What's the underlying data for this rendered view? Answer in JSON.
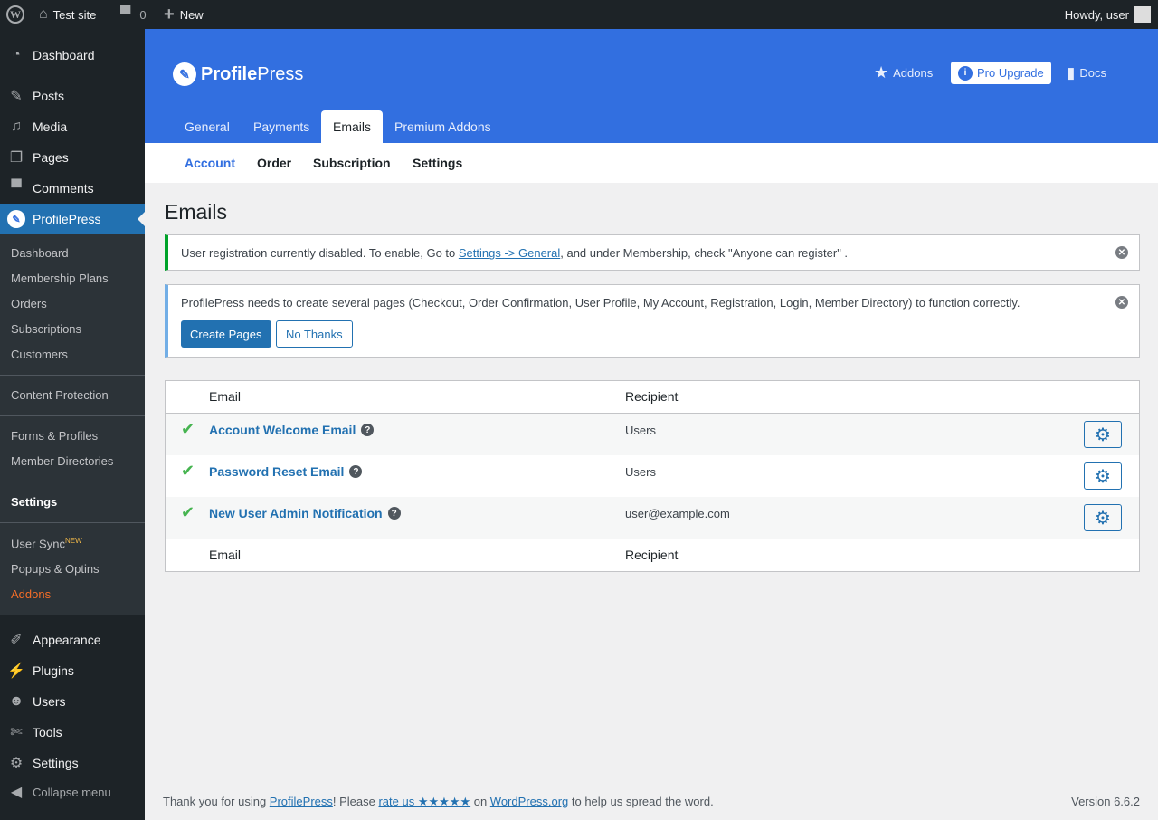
{
  "adminbar": {
    "site": "Test site",
    "comments": "0",
    "new": "New",
    "howdy": "Howdy, user"
  },
  "sidebar": {
    "top": [
      {
        "label": "Dashboard",
        "icon": "dashboard-icon"
      }
    ],
    "items": [
      {
        "label": "Posts"
      },
      {
        "label": "Media"
      },
      {
        "label": "Pages"
      },
      {
        "label": "Comments"
      },
      {
        "label": "ProfilePress"
      }
    ],
    "sub": [
      "Dashboard",
      "Membership Plans",
      "Orders",
      "Subscriptions",
      "Customers",
      "Content Protection",
      "Forms & Profiles",
      "Member Directories",
      "Settings",
      "User Sync",
      "Popups & Optins",
      "Addons"
    ],
    "new_badge": "NEW",
    "bottom": [
      "Appearance",
      "Plugins",
      "Users",
      "Tools",
      "Settings"
    ],
    "collapse": "Collapse menu"
  },
  "header": {
    "logo_bold": "Profile",
    "logo_light": "Press",
    "addons": "Addons",
    "pro": "Pro Upgrade",
    "docs": "Docs",
    "tabs": [
      "General",
      "Payments",
      "Emails",
      "Premium Addons"
    ],
    "active_tab": "Emails"
  },
  "subnav": [
    "Account",
    "Order",
    "Subscription",
    "Settings"
  ],
  "page_title": "Emails",
  "notice1": {
    "pre": "User registration currently disabled. To enable, Go to ",
    "link": "Settings -> General",
    "post": ", and under Membership, check \"Anyone can register\" ."
  },
  "notice2": {
    "text": "ProfilePress needs to create several pages (Checkout, Order Confirmation, User Profile, My Account, Registration, Login, Member Directory) to function correctly.",
    "create": "Create Pages",
    "no": "No Thanks"
  },
  "table": {
    "col_email": "Email",
    "col_recipient": "Recipient",
    "rows": [
      {
        "name": "Account Welcome Email",
        "recipient": "Users"
      },
      {
        "name": "Password Reset Email",
        "recipient": "Users"
      },
      {
        "name": "New User Admin Notification",
        "recipient": "user@example.com"
      }
    ]
  },
  "footer": {
    "a": "Thank you for using ",
    "pp": "ProfilePress",
    "b": "! Please ",
    "rate": "rate us ★★★★★",
    "c": " on ",
    "wporg": "WordPress.org",
    "d": " to help us spread the word.",
    "version": "Version 6.6.2"
  },
  "colors": {
    "brand": "#326fe0",
    "admin_dark": "#1d2327",
    "link": "#2271b1",
    "success": "#46b450"
  }
}
